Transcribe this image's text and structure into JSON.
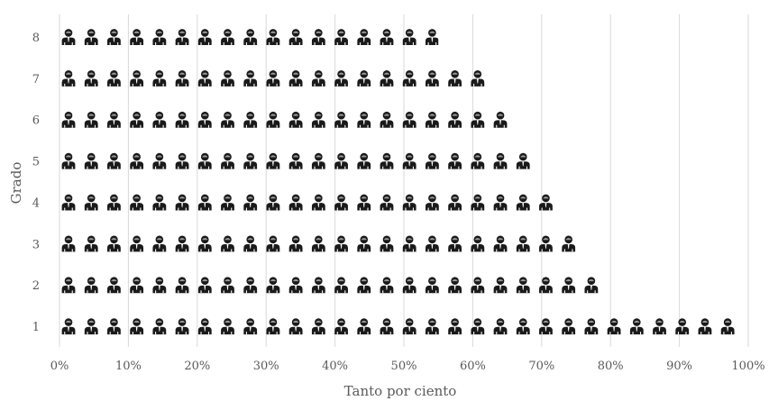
{
  "chart_data": {
    "type": "bar",
    "orientation": "horizontal",
    "glyph": "person-icon",
    "categories": [
      "1",
      "2",
      "3",
      "4",
      "5",
      "6",
      "7",
      "8"
    ],
    "values": [
      99,
      79,
      75,
      72,
      69,
      65,
      62,
      55
    ],
    "xlabel": "Tanto por ciento",
    "ylabel": "Grado",
    "xlim": [
      0,
      100
    ],
    "x_ticks": [
      "0%",
      "10%",
      "20%",
      "30%",
      "40%",
      "50%",
      "60%",
      "70%",
      "80%",
      "90%",
      "100%"
    ],
    "x_tick_values": [
      0,
      10,
      20,
      30,
      40,
      50,
      60,
      70,
      80,
      90,
      100
    ],
    "grid": "vertical",
    "colors": {
      "icon": "#1a1a1a",
      "grid": "#d9d9d9",
      "text": "#595959"
    }
  }
}
